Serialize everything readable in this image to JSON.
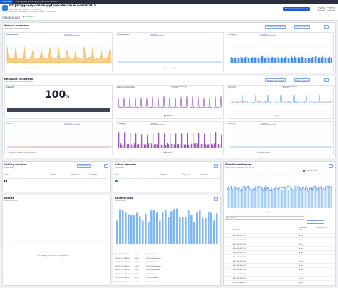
{
  "tabs": [
    "Overview",
    "httpbigquery-azure-python-dev in eu-central-1"
  ],
  "header": {
    "title": "httpbigquery-azure-python-dev in eu-central-1",
    "meta1": "Azure web app · python · 3 monitoring",
    "meta2": "Service: 1 deployment · Dynatrace · 5 Jobs · Connections",
    "buttons": [
      "Find service in Services app",
      "Edit",
      "More"
    ],
    "chips": [
      "Requests per app",
      "No problems"
    ]
  },
  "service_overview": {
    "title": "Service overview",
    "subtitle": "Values shown in below timeframe",
    "buttons": [
      "Requests Time Service",
      "Details of Service"
    ],
    "tiles": [
      {
        "title": "Response time",
        "select": "Average",
        "legend": [
          "Median",
          "90th"
        ]
      },
      {
        "title": "Failed requests",
        "select": "Average",
        "legend": [
          "Failed rate",
          "Count"
        ]
      },
      {
        "title": "Throughput",
        "select": "Average",
        "legend": [
          "Requests"
        ]
      }
    ]
  },
  "resource": {
    "title": "Resource utilization",
    "subtitle": "Values shown from selected timeframe",
    "buttons": [
      "Resource Time Service",
      "Details of Service"
    ],
    "tiles": [
      {
        "title": "Availability",
        "select": "",
        "value": "100",
        "unit": "%"
      },
      {
        "title": "Instruction executions",
        "select": "Average",
        "legend": [
          "Instruction"
        ]
      },
      {
        "title": "CPU time",
        "select": "Average",
        "legend": [
          "CPU"
        ]
      },
      {
        "title": "Errors",
        "select": "Average",
        "legend": [
          "Number of failures",
          "Rate of failures"
        ]
      },
      {
        "title": "Throughput",
        "select": "Average",
        "legend": [
          "Requests"
        ]
      },
      {
        "title": "Memory",
        "select": "Average",
        "legend": [
          "Pending requests"
        ]
      }
    ]
  },
  "calling": {
    "title": "Calling services",
    "subtitle": "Transactions",
    "button": "View Services",
    "cols": [
      "Name",
      "Response time (median)",
      "Failure rate",
      "Throughput"
    ],
    "rows": [
      {
        "name": "frontend-api-service",
        "rt": "",
        "fr": "",
        "tp": "1.4/min"
      }
    ]
  },
  "called": {
    "title": "Called services",
    "subtitle": "Transactions",
    "cols": [
      "Name",
      "Response time (median)",
      "Failure rate",
      "Throughput"
    ],
    "rows": [
      {
        "name": "prometheus-exporter-az-python-dev in eu-central-1",
        "rt": "",
        "fr": "",
        "tp": "0.2/min"
      }
    ]
  },
  "traces": {
    "title": "Distributed traces",
    "subtitle": "Traces that have passed to this service",
    "toggle": "Show slow traces",
    "legend": [
      "Trace count",
      "Response time median"
    ],
    "search_placeholder": "Filter by",
    "button": "Configure Services",
    "cols": [
      "Start time",
      "Response time",
      "Processing time"
    ],
    "rows": [
      {
        "t": "Mon 08 04:52:12",
        "rt": "6 ms",
        "pt": "-"
      },
      {
        "t": "Mon 08 04:51:57",
        "rt": "7 ms",
        "pt": "-"
      },
      {
        "t": "Mon 08 04:51:41",
        "rt": "6 ms",
        "pt": "-"
      },
      {
        "t": "Mon 08 04:51:26",
        "rt": "5 ms",
        "pt": "-"
      },
      {
        "t": "Mon 08 04:51:10",
        "rt": "8 ms",
        "pt": "-"
      },
      {
        "t": "Mon 08 04:50:54",
        "rt": "6 ms",
        "pt": "-"
      },
      {
        "t": "Mon 08 04:50:39",
        "rt": "7 ms",
        "pt": "-"
      },
      {
        "t": "Mon 08 04:50:23",
        "rt": "6 ms",
        "pt": "-"
      },
      {
        "t": "Mon 08 04:50:08",
        "rt": "5 ms",
        "pt": "-"
      },
      {
        "t": "Mon 08 04:49:52",
        "rt": "6 ms",
        "pt": "-"
      },
      {
        "t": "Mon 08 04:49:36",
        "rt": "7 ms",
        "pt": "-"
      },
      {
        "t": "Mon 08 04:49:21",
        "rt": "6 ms",
        "pt": "-"
      }
    ]
  },
  "events": {
    "title": "Events",
    "subtitle": "Problems - Events",
    "empty1": "No data available",
    "empty2": "The changing set of events is empty/filters"
  },
  "logs": {
    "title": "Related logs",
    "subtitle": "Log frequency",
    "cols": [
      "Timestamp",
      "Status",
      "Content"
    ],
    "rows": [
      {
        "ts": "2023-11-08 04:52:13",
        "st": "INFO",
        "c": "200 GET /api/orders"
      },
      {
        "ts": "2023-11-08 04:52:01",
        "st": "INFO",
        "c": "200 GET /api/orders"
      },
      {
        "ts": "2023-11-08 04:51:49",
        "st": "INFO",
        "c": "200 GET /health"
      },
      {
        "ts": "2023-11-08 04:51:37",
        "st": "INFO",
        "c": "200 GET /api/orders"
      },
      {
        "ts": "2023-11-08 04:51:25",
        "st": "INFO",
        "c": "200 GET /api/items"
      },
      {
        "ts": "2023-11-08 04:51:13",
        "st": "INFO",
        "c": "200 GET /api/orders"
      },
      {
        "ts": "2023-11-08 04:51:01",
        "st": "INFO",
        "c": "200 GET /health"
      },
      {
        "ts": "2023-11-08 04:50:49",
        "st": "INFO",
        "c": "200 GET /api/orders"
      }
    ]
  },
  "colors": {
    "accent": "#1f5ccb",
    "orange": "#f2a93b",
    "blue": "#4a90e2",
    "purple": "#8e44ad",
    "green": "#2f9e44",
    "bar": "#7fb8f0"
  }
}
